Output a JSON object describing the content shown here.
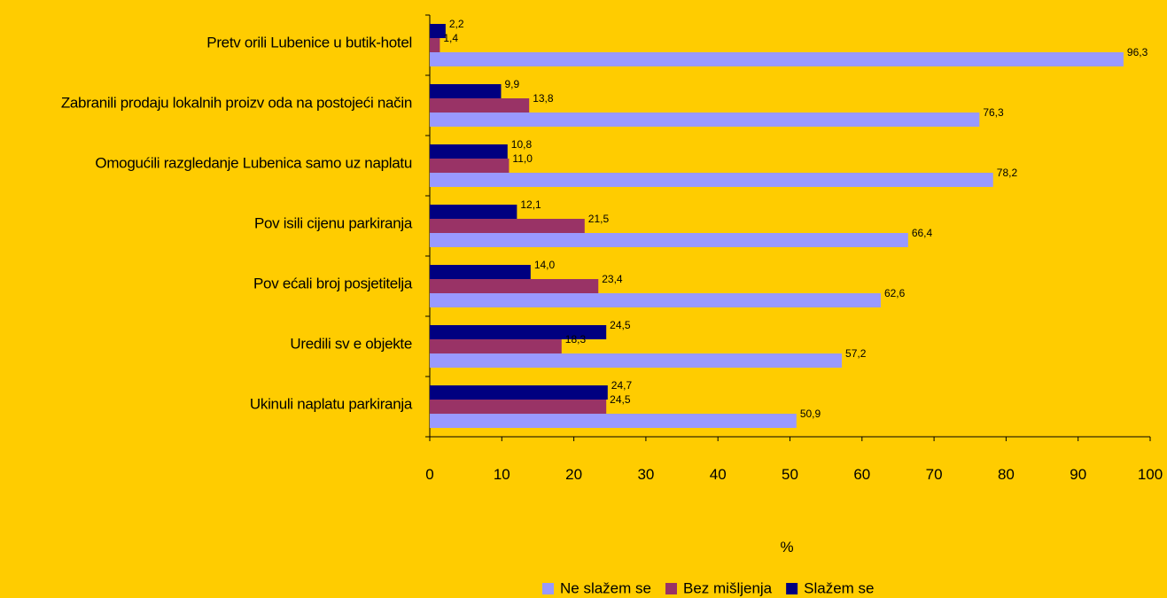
{
  "chart_data": {
    "type": "bar",
    "orientation": "horizontal",
    "categories": [
      "Pretv orili Lubenice u butik-hotel",
      "Zabranili prodaju lokalnih proizv oda na postojeći način",
      "Omogućili razgledanje Lubenica samo uz naplatu",
      "Pov isili cijenu parkiranja",
      "Pov ećali broj posjetitelja",
      "Uredili sv e objekte",
      "Ukinuli naplatu parkiranja"
    ],
    "series": [
      {
        "name": "Slažem se",
        "color": "#000080",
        "values": [
          2.2,
          9.9,
          10.8,
          12.1,
          14.0,
          24.5,
          24.7
        ],
        "labels": [
          "2,2",
          "9,9",
          "10,8",
          "12,1",
          "14,0",
          "24,5",
          "24,7"
        ]
      },
      {
        "name": "Bez mišljenja",
        "color": "#993366",
        "values": [
          1.4,
          13.8,
          11.0,
          21.5,
          23.4,
          18.3,
          24.5
        ],
        "labels": [
          "1,4",
          "13,8",
          "11,0",
          "21,5",
          "23,4",
          "18,3",
          "24,5"
        ]
      },
      {
        "name": "Ne slažem se",
        "color": "#9999FF",
        "values": [
          96.3,
          76.3,
          78.2,
          66.4,
          62.6,
          57.2,
          50.9
        ],
        "labels": [
          "96,3",
          "76,3",
          "78,2",
          "66,4",
          "62,6",
          "57,2",
          "50,9"
        ]
      }
    ],
    "xlim": [
      0,
      100
    ],
    "xticks": [
      "0",
      "10",
      "20",
      "30",
      "40",
      "50",
      "60",
      "70",
      "80",
      "90",
      "100"
    ],
    "xlabel": "%",
    "legend_order": [
      "Ne slažem se",
      "Bez mišljenja",
      "Slažem se"
    ],
    "legend_position": "bottom"
  }
}
